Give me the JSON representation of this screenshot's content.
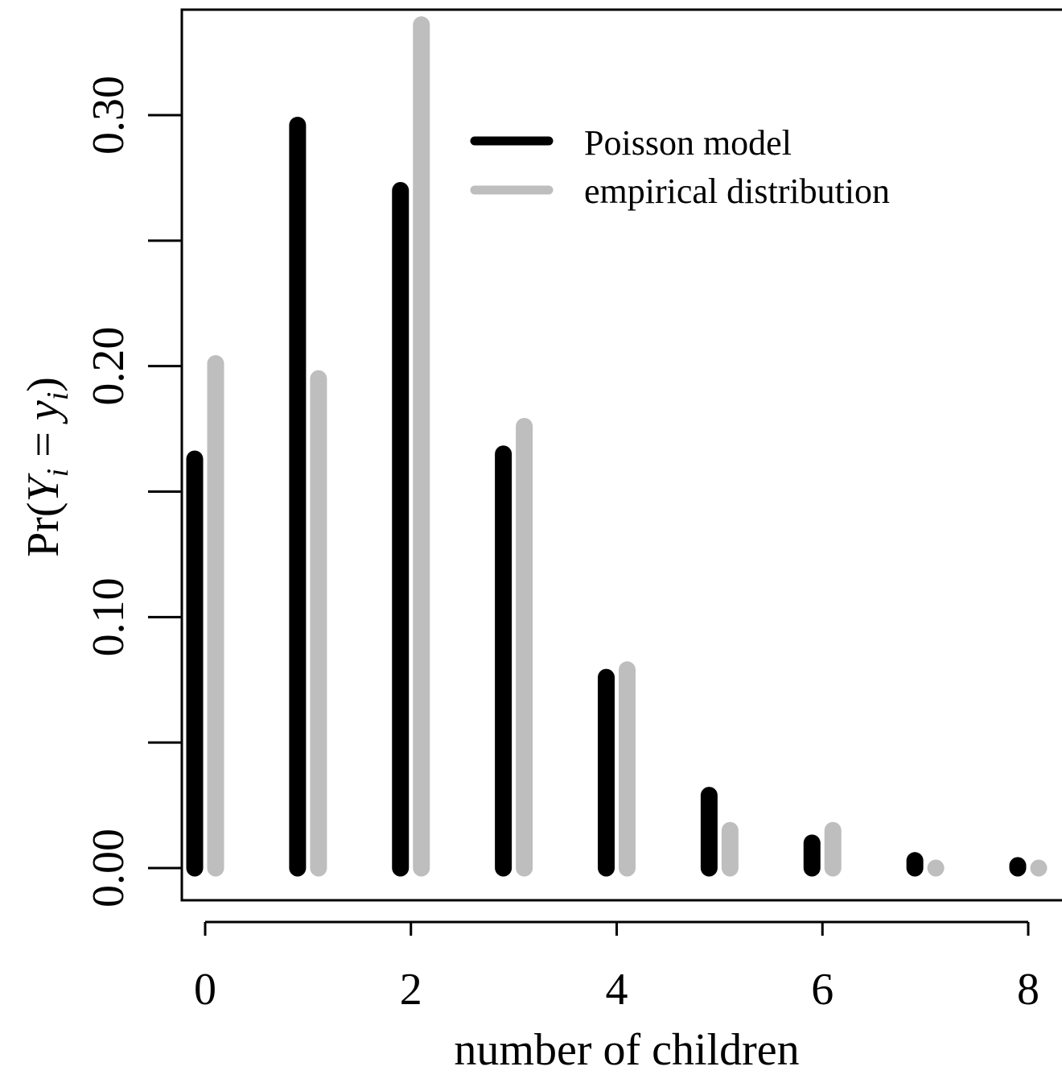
{
  "chart_data": {
    "type": "bar",
    "xlabel": "number of children",
    "ylabel_parts": {
      "prefix": "Pr(",
      "Y": "Y",
      "i1": "i",
      "eq": " = ",
      "y": "y",
      "i2": "i",
      "suffix": ")"
    },
    "x": [
      0,
      1,
      2,
      3,
      4,
      5,
      6,
      7,
      8
    ],
    "xlim": [
      -0.1,
      8.3
    ],
    "ylim": [
      -0.0045,
      0.345
    ],
    "x_ticks": [
      0,
      2,
      4,
      6,
      8
    ],
    "x_tick_labels": [
      "0",
      "2",
      "4",
      "6",
      "8"
    ],
    "y_ticks": [
      0.0,
      0.05,
      0.1,
      0.15,
      0.2,
      0.25,
      0.3
    ],
    "y_tick_labels": [
      "0.00",
      "",
      "0.10",
      "",
      "0.20",
      "",
      "0.30"
    ],
    "grid": false,
    "legend_position": "top-right",
    "series": [
      {
        "name": "Poisson model",
        "color": "#000000",
        "values": [
          0.163,
          0.296,
          0.27,
          0.165,
          0.076,
          0.029,
          0.01,
          0.003,
          0.001
        ]
      },
      {
        "name": "empirical distribution",
        "color": "#bebebe",
        "values": [
          0.201,
          0.195,
          0.336,
          0.176,
          0.079,
          0.015,
          0.015,
          0.0,
          0.0
        ]
      }
    ]
  }
}
